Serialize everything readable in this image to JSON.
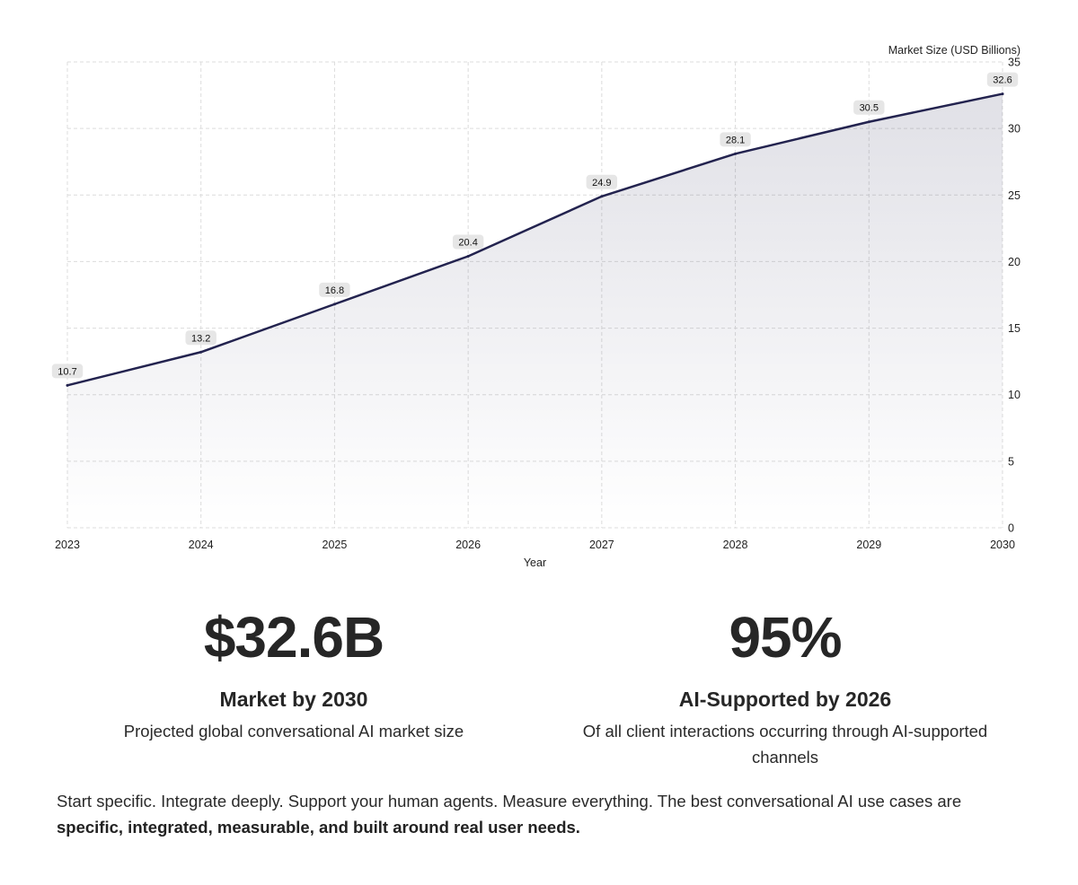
{
  "chart_data": {
    "type": "area",
    "x": [
      "2023",
      "2024",
      "2025",
      "2026",
      "2027",
      "2028",
      "2029",
      "2030"
    ],
    "series": [
      {
        "values": [
          10.7,
          13.2,
          16.8,
          20.4,
          24.9,
          28.1,
          30.5,
          32.6
        ]
      }
    ],
    "data_labels": [
      "10.7",
      "13.2",
      "16.8",
      "20.4",
      "24.9",
      "28.1",
      "30.5",
      "32.6"
    ],
    "xlabel": "Year",
    "ylabel": "Market Size (USD Billions)",
    "ylim": [
      0,
      35
    ],
    "yticks": [
      "0",
      "5",
      "10",
      "15",
      "20",
      "25",
      "30",
      "35"
    ],
    "grid": true,
    "y_axis_side": "right",
    "line_color": "#23234f",
    "fill_color": "#23234f"
  },
  "stats": [
    {
      "value": "$32.6B",
      "title": "Market by 2030",
      "description": "Projected global conversational AI market size"
    },
    {
      "value": "95%",
      "title": "AI-Supported by 2026",
      "description": "Of all client interactions occurring through AI-supported channels"
    }
  ],
  "footer": {
    "text": "Start specific. Integrate deeply. Support your human agents. Measure everything. The best conversational AI use cases are ",
    "bold_text": "specific, integrated, measurable, and built around real user needs."
  }
}
